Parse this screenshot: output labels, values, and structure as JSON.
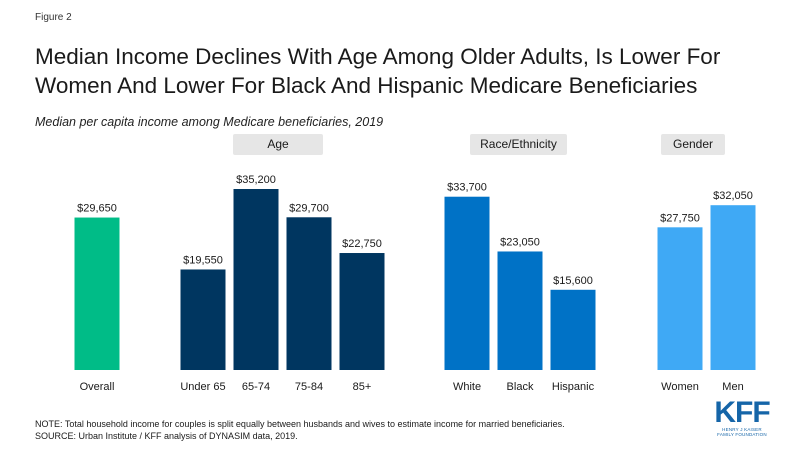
{
  "figure_label": "Figure 2",
  "title": "Median Income Declines With Age Among Older Adults, Is Lower For Women And Lower For Black And Hispanic Medicare Beneficiaries",
  "subtitle": "Median per capita income among Medicare beneficiaries, 2019",
  "groups": [
    {
      "label": "Age"
    },
    {
      "label": "Race/Ethnicity"
    },
    {
      "label": "Gender"
    }
  ],
  "notes": {
    "note": "NOTE:  Total household income for couples is split equally between husbands and wives to estimate income for married beneficiaries.",
    "source": "SOURCE: Urban Institute / KFF analysis of DYNASIM  data, 2019."
  },
  "logo": {
    "main": "KFF",
    "line1": "HENRY J KAISER",
    "line2": "FAMILY FOUNDATION"
  },
  "colors": {
    "overall": "#00bc87",
    "age": "#003660",
    "race": "#0072c6",
    "gender": "#3fa9f5"
  },
  "chart_data": {
    "type": "bar",
    "ylim": [
      0,
      40000
    ],
    "categories": [
      "Overall",
      "Under 65",
      "65-74",
      "75-84",
      "85+",
      "White",
      "Black",
      "Hispanic",
      "Women",
      "Men"
    ],
    "values": [
      29650,
      19550,
      35200,
      29700,
      22750,
      33700,
      23050,
      15600,
      27750,
      32050
    ],
    "value_labels": [
      "$29,650",
      "$19,550",
      "$35,200",
      "$29,700",
      "$22,750",
      "$33,700",
      "$23,050",
      "$15,600",
      "$27,750",
      "$32,050"
    ],
    "bar_groups": [
      "overall",
      "age",
      "age",
      "age",
      "age",
      "race",
      "race",
      "race",
      "gender",
      "gender"
    ]
  }
}
